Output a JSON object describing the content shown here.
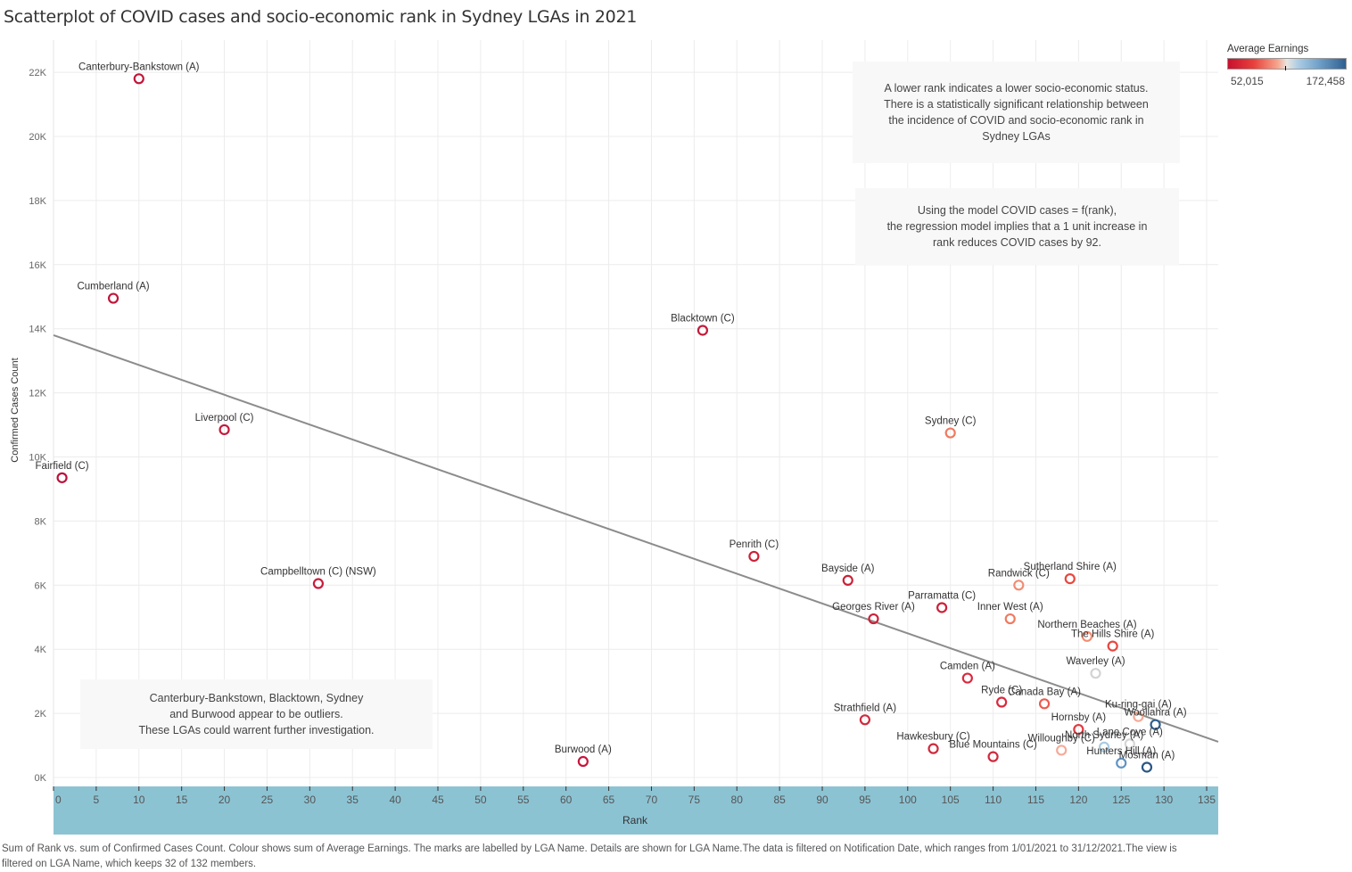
{
  "chart_data": {
    "type": "scatter",
    "title": "Scatterplot of  COVID cases and socio-economic rank in Sydney LGAs in 2021",
    "xlabel": "Rank",
    "ylabel": "Confirmed Cases Count",
    "xlim": [
      0,
      136
    ],
    "ylim": [
      0,
      23000
    ],
    "x_ticks": [
      0,
      5,
      10,
      15,
      20,
      25,
      30,
      35,
      40,
      45,
      50,
      55,
      60,
      65,
      70,
      75,
      80,
      85,
      90,
      95,
      100,
      105,
      110,
      115,
      120,
      125,
      130,
      135
    ],
    "y_ticks": [
      {
        "value": 0,
        "label": "0K"
      },
      {
        "value": 2000,
        "label": "2K"
      },
      {
        "value": 4000,
        "label": "4K"
      },
      {
        "value": 6000,
        "label": "6K"
      },
      {
        "value": 8000,
        "label": "8K"
      },
      {
        "value": 10000,
        "label": "10K"
      },
      {
        "value": 12000,
        "label": "12K"
      },
      {
        "value": 14000,
        "label": "14K"
      },
      {
        "value": 16000,
        "label": "16K"
      },
      {
        "value": 18000,
        "label": "18K"
      },
      {
        "value": 20000,
        "label": "20K"
      },
      {
        "value": 22000,
        "label": "22K"
      }
    ],
    "grid": true,
    "trend_line": {
      "intercept": 13800,
      "slope": -93,
      "color": "#8c8c8c"
    },
    "color_legend": {
      "title": "Average Earnings",
      "min": 52015,
      "max": 172458,
      "min_label": "52,015",
      "max_label": "172,458",
      "placement": "top-right"
    },
    "points": [
      {
        "name": "Canterbury-Bankstown (A)",
        "rank": 10,
        "cases": 21800,
        "color": "#c0163a"
      },
      {
        "name": "Cumberland (A)",
        "rank": 7,
        "cases": 14950,
        "color": "#c0163a"
      },
      {
        "name": "Fairfield (C)",
        "rank": 1,
        "cases": 9350,
        "color": "#b8123a"
      },
      {
        "name": "Liverpool (C)",
        "rank": 20,
        "cases": 10850,
        "color": "#c41a3a"
      },
      {
        "name": "Campbelltown (C) (NSW)",
        "rank": 31,
        "cases": 6050,
        "color": "#c81b3c"
      },
      {
        "name": "Burwood (A)",
        "rank": 62,
        "cases": 500,
        "color": "#c8163c"
      },
      {
        "name": "Blacktown (C)",
        "rank": 76,
        "cases": 13950,
        "color": "#c41a3a"
      },
      {
        "name": "Penrith (C)",
        "rank": 82,
        "cases": 6900,
        "color": "#cc2038"
      },
      {
        "name": "Bayside (A)",
        "rank": 93,
        "cases": 6150,
        "color": "#cc2038"
      },
      {
        "name": "Georges River (A)",
        "rank": 96,
        "cases": 4950,
        "color": "#cc2038"
      },
      {
        "name": "Parramatta (C)",
        "rank": 104,
        "cases": 5300,
        "color": "#cc2038"
      },
      {
        "name": "Sydney (C)",
        "rank": 105,
        "cases": 10750,
        "color": "#f07a60"
      },
      {
        "name": "Randwick (C)",
        "rank": 113,
        "cases": 6000,
        "color": "#f28c72"
      },
      {
        "name": "Inner West (A)",
        "rank": 112,
        "cases": 4950,
        "color": "#f07a60"
      },
      {
        "name": "Sutherland Shire (A)",
        "rank": 119,
        "cases": 6200,
        "color": "#e8473f"
      },
      {
        "name": "Northern Beaches (A)",
        "rank": 121,
        "cases": 4400,
        "color": "#f28c72"
      },
      {
        "name": "The Hills Shire (A)",
        "rank": 124,
        "cases": 4100,
        "color": "#e8473f"
      },
      {
        "name": "Waverley (A)",
        "rank": 122,
        "cases": 3250,
        "color": "#d3d3d3"
      },
      {
        "name": "Camden (A)",
        "rank": 107,
        "cases": 3100,
        "color": "#d9283d"
      },
      {
        "name": "Ryde (C)",
        "rank": 111,
        "cases": 2350,
        "color": "#d9283d"
      },
      {
        "name": "Canada Bay (A)",
        "rank": 116,
        "cases": 2300,
        "color": "#ec5a4c"
      },
      {
        "name": "Strathfield (A)",
        "rank": 95,
        "cases": 1800,
        "color": "#d02a3e"
      },
      {
        "name": "Hawkesbury (C)",
        "rank": 103,
        "cases": 900,
        "color": "#d02a3e"
      },
      {
        "name": "Blue Mountains (C)",
        "rank": 110,
        "cases": 650,
        "color": "#d02a3e"
      },
      {
        "name": "Willoughby (C)",
        "rank": 118,
        "cases": 850,
        "color": "#f5aa98"
      },
      {
        "name": "Hornsby (A)",
        "rank": 120,
        "cases": 1500,
        "color": "#e03b3f"
      },
      {
        "name": "North Sydney (A)",
        "rank": 123,
        "cases": 950,
        "color": "#a9cbe3"
      },
      {
        "name": "Lane Cove (A)",
        "rank": 126,
        "cases": 1050,
        "color": "#d6d6d6"
      },
      {
        "name": "Ku-ring-gai (A)",
        "rank": 127,
        "cases": 1900,
        "color": "#f5aa98"
      },
      {
        "name": "Woollahra (A)",
        "rank": 129,
        "cases": 1650,
        "color": "#2f5f8f"
      },
      {
        "name": "Hunters Hill (A)",
        "rank": 125,
        "cases": 450,
        "color": "#5f93c4"
      },
      {
        "name": "Mosman (A)",
        "rank": 128,
        "cases": 320,
        "color": "#2a5584"
      }
    ]
  },
  "annotations": {
    "status": "A lower rank indicates a lower socio-economic status.\nThere is a statistically significant relationship between\nthe incidence of COVID and socio-economic rank in\nSydney LGAs",
    "model": "Using the model COVID cases = f(rank),\nthe regression model implies that a 1 unit increase in\nrank reduces COVID cases by 92.",
    "outliers": "Canterbury-Bankstown, Blacktown, Sydney\nand Burwood appear to be outliers.\nThese LGAs could warrent further investigation."
  },
  "footer": "Sum of Rank vs. sum of Confirmed Cases Count. Colour shows sum of Average Earnings. The marks are labelled by LGA Name. Details are shown for LGA Name.The data is filtered on Notification Date, which ranges from 1/01/2021 to 31/12/2021.The view is filtered on LGA Name, which keeps 32 of 132 members.",
  "colors": {
    "axis_band": "#8cc3d3",
    "grid": "#eeeeee",
    "annotation_bg": "#f8f8f8"
  }
}
